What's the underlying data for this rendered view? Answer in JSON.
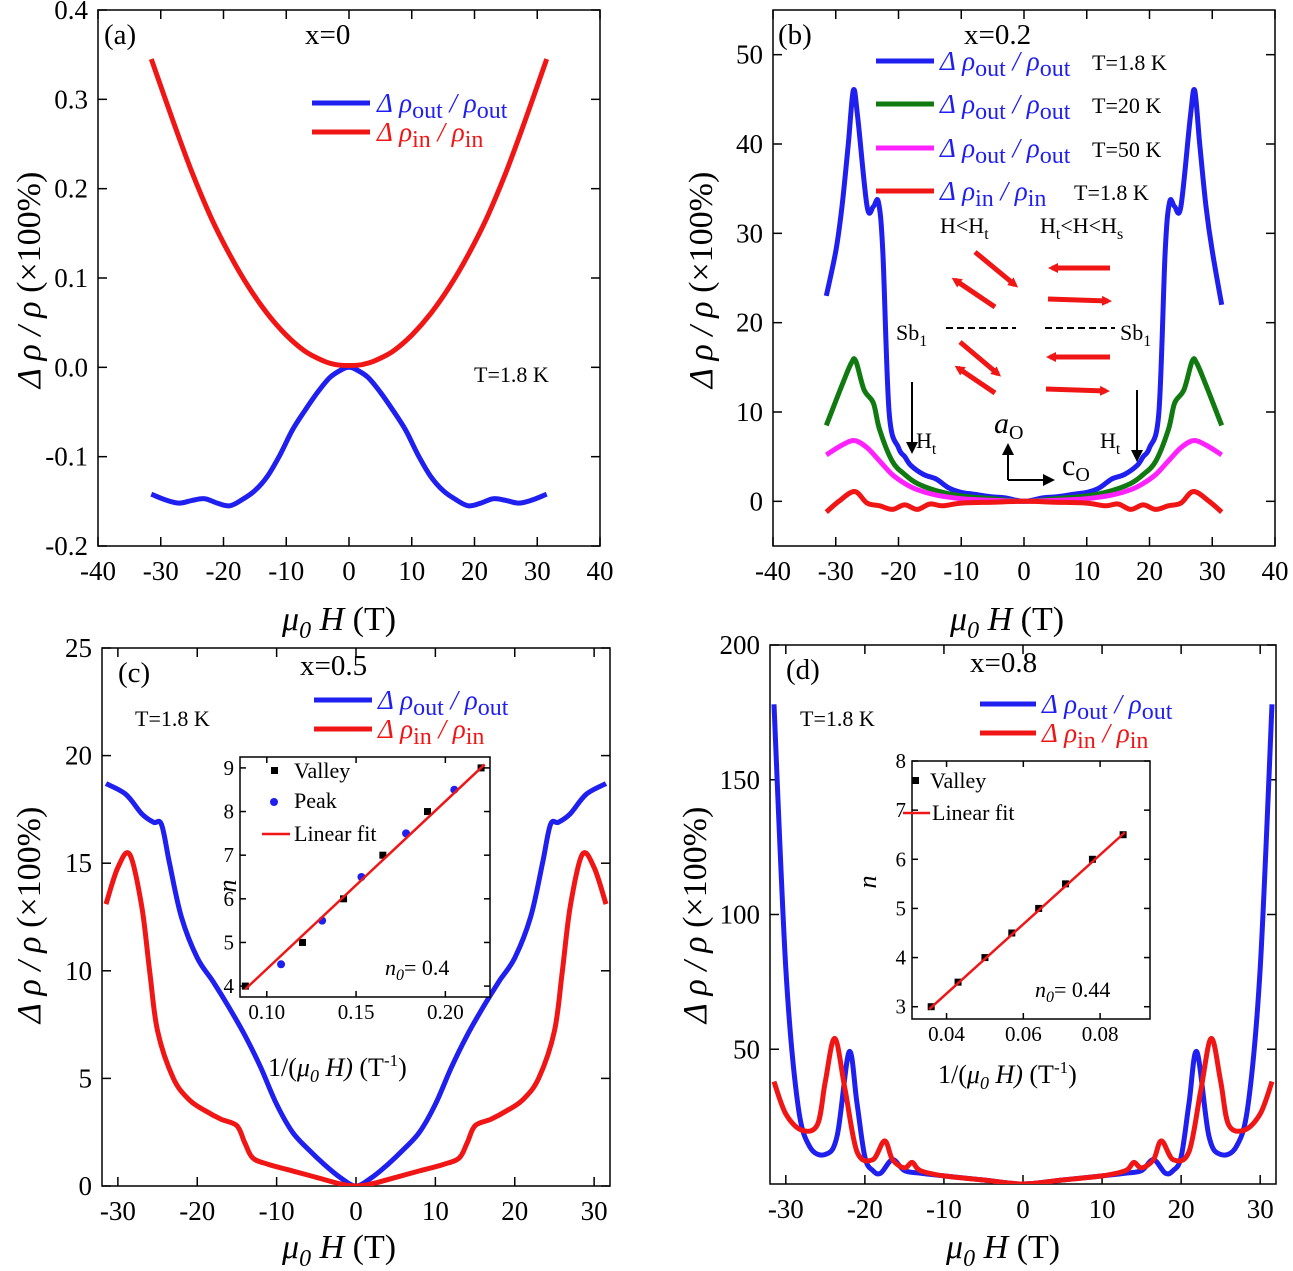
{
  "figure": {
    "panels": [
      {
        "id": "a",
        "label": "(a)",
        "title": "x=0",
        "temperature": "T=1.8 K",
        "xlabel": "(T)",
        "ylabel": "(×100%)"
      },
      {
        "id": "b",
        "label": "(b)",
        "title": "x=0.2",
        "xlabel": "(T)",
        "ylabel": "(×100%)",
        "annotations": {
          "h_low": "H<H",
          "h_low_sub": "t",
          "h_mid": "H",
          "h_mid_sub1": "t",
          "h_mid_mid": "<H<H",
          "h_mid_sub2": "s",
          "sb": "Sb",
          "sb_sub": "1",
          "ht": "H",
          "ht_sub": "t",
          "ao": "a",
          "ao_sub": "O",
          "co": "c",
          "co_sub": "O"
        }
      },
      {
        "id": "c",
        "label": "(c)",
        "title": "x=0.5",
        "temperature": "T=1.8 K",
        "xlabel": "(T)",
        "ylabel": "(×100%)",
        "inset": {
          "ylabel": "n",
          "xlabel": "(T",
          "xlabel_sup": "-1",
          "xlabel_pre": "1/(",
          "n0": "= 0.4",
          "n0_label": "n"
        }
      },
      {
        "id": "d",
        "label": "(d)",
        "title": "x=0.8",
        "temperature": "T=1.8 K",
        "xlabel": "(T)",
        "ylabel": "(×100%)",
        "inset": {
          "ylabel": "n",
          "xlabel": "(T",
          "xlabel_sup": "-1",
          "xlabel_pre": "1/(",
          "n0": "= 0.44",
          "n0_label": "n"
        }
      }
    ],
    "legend": {
      "out_delta": "Δ ρ",
      "out_sub": "out",
      "out_slash": " / ρ",
      "in_delta": "Δ ρ",
      "in_sub": "in",
      "in_slash": " / ρ",
      "t18": "T=1.8 K",
      "t20": "T=20 K",
      "t50": "T=50 K",
      "valley": "Valley",
      "peak": "Peak",
      "linear_fit": "Linear fit"
    },
    "colors": {
      "blue": "#1f1ff0",
      "red": "#f01616",
      "green": "#107a10",
      "magenta": "#ff22ff"
    }
  },
  "chart_data": [
    {
      "panel": "a",
      "type": "line",
      "title": "x=0",
      "xlabel": "μ0 H (T)",
      "ylabel": "Δρ/ρ (×100%)",
      "xlim": [
        -40,
        40
      ],
      "ylim": [
        -0.2,
        0.4
      ],
      "xticks": [
        -40,
        -30,
        -20,
        -10,
        0,
        10,
        20,
        30,
        40
      ],
      "yticks": [
        -0.2,
        -0.1,
        0.0,
        0.1,
        0.2,
        0.3,
        0.4
      ],
      "ytick_labels": [
        "-0.2",
        "-0.1",
        "0.0",
        "0.1",
        "0.2",
        "0.3",
        "0.4"
      ],
      "series": [
        {
          "name": "Δρout/ρout",
          "color": "blue",
          "x": [
            -31.5,
            -29,
            -27,
            -25,
            -23,
            -21,
            -19,
            -17,
            -15,
            -13,
            -11,
            -9,
            -7,
            -5,
            -3,
            -1,
            0,
            1,
            3,
            5,
            7,
            9,
            11,
            13,
            15,
            17,
            19,
            21,
            23,
            25,
            27,
            29,
            31.5
          ],
          "y": [
            -0.142,
            -0.149,
            -0.152,
            -0.149,
            -0.147,
            -0.152,
            -0.155,
            -0.148,
            -0.138,
            -0.122,
            -0.098,
            -0.07,
            -0.048,
            -0.028,
            -0.011,
            -0.002,
            0.0,
            -0.002,
            -0.011,
            -0.028,
            -0.048,
            -0.07,
            -0.098,
            -0.122,
            -0.138,
            -0.148,
            -0.155,
            -0.152,
            -0.147,
            -0.149,
            -0.152,
            -0.149,
            -0.142
          ]
        },
        {
          "name": "Δρin/ρin",
          "color": "red",
          "x": [
            -31.5,
            -28,
            -25,
            -22,
            -19,
            -16,
            -13,
            -10,
            -7,
            -4,
            -2,
            0,
            2,
            4,
            7,
            10,
            13,
            16,
            19,
            22,
            25,
            28,
            31.5
          ],
          "y": [
            0.345,
            0.275,
            0.218,
            0.168,
            0.126,
            0.09,
            0.06,
            0.036,
            0.018,
            0.007,
            0.003,
            0.002,
            0.003,
            0.007,
            0.018,
            0.036,
            0.06,
            0.09,
            0.126,
            0.168,
            0.218,
            0.275,
            0.345
          ]
        }
      ]
    },
    {
      "panel": "b",
      "type": "line",
      "title": "x=0.2",
      "xlabel": "μ0 H (T)",
      "ylabel": "Δρ/ρ (×100%)",
      "xlim": [
        -40,
        40
      ],
      "ylim": [
        -5,
        55
      ],
      "xticks": [
        -40,
        -30,
        -20,
        -10,
        0,
        10,
        20,
        30,
        40
      ],
      "yticks": [
        0,
        10,
        20,
        30,
        40,
        50
      ],
      "series": [
        {
          "name": "Δρout/ρout T=1.8 K",
          "color": "blue",
          "x": [
            -31.5,
            -30,
            -29,
            -28,
            -27.2,
            -26.5,
            -25,
            -24,
            -23.2,
            -22.5,
            -21.5,
            -20,
            -19,
            -18,
            -16,
            -14,
            -12,
            -10,
            -8,
            -5,
            -3,
            0,
            3,
            5,
            8,
            10,
            12,
            14,
            16,
            18,
            19,
            20,
            21.5,
            22.5,
            23.2,
            24,
            25,
            26.5,
            27.2,
            28,
            29,
            30,
            31.5
          ],
          "y": [
            23,
            28,
            33,
            40,
            46,
            43,
            33,
            33,
            33.5,
            28,
            10,
            6,
            5,
            4,
            3,
            2.5,
            1.5,
            1,
            0.8,
            0.5,
            0.4,
            0,
            0.4,
            0.5,
            0.8,
            1,
            1.5,
            2.5,
            3,
            4,
            5,
            6,
            10,
            28,
            33.5,
            33,
            33,
            43,
            46,
            40,
            33,
            28,
            22
          ]
        },
        {
          "name": "Δρout/ρout T=20 K",
          "color": "green",
          "x": [
            -31.5,
            -29,
            -27.5,
            -26.8,
            -25.5,
            -24,
            -23,
            -21,
            -19,
            -17,
            -14,
            -10,
            -5,
            0,
            5,
            10,
            14,
            17,
            19,
            21,
            23,
            24,
            25.5,
            26.8,
            27.5,
            29,
            31.5
          ],
          "y": [
            8.5,
            13,
            15.5,
            15.7,
            12.5,
            11,
            8,
            4.5,
            3,
            2,
            1.2,
            0.6,
            0.3,
            0,
            0.3,
            0.6,
            1.2,
            2,
            3,
            4.5,
            8,
            11,
            12.5,
            15.7,
            15.5,
            13,
            8.5
          ]
        },
        {
          "name": "Δρout/ρout T=50 K",
          "color": "magenta",
          "x": [
            -31.5,
            -29,
            -27,
            -25,
            -23,
            -21,
            -19,
            -17,
            -14,
            -10,
            -5,
            0,
            5,
            10,
            14,
            17,
            19,
            21,
            23,
            25,
            27,
            29,
            31.5
          ],
          "y": [
            5.2,
            6.3,
            6.8,
            6,
            4.5,
            3,
            2,
            1.3,
            0.7,
            0.3,
            0.1,
            0,
            0.1,
            0.3,
            0.7,
            1.3,
            2,
            3,
            4.5,
            6,
            6.8,
            6.3,
            5.2
          ]
        },
        {
          "name": "Δρin/ρin T=1.8 K",
          "color": "red",
          "x": [
            -31.5,
            -29.5,
            -27,
            -25,
            -23,
            -21,
            -19,
            -17,
            -15,
            -13,
            -10,
            -5,
            0,
            5,
            10,
            13,
            15,
            17,
            19,
            21,
            23,
            25,
            27,
            29.5,
            31.5
          ],
          "y": [
            -1.2,
            0,
            1.1,
            -0.2,
            -0.5,
            -0.9,
            -0.4,
            -0.9,
            -0.3,
            -0.5,
            -0.2,
            -0.1,
            0,
            -0.1,
            -0.2,
            -0.5,
            -0.3,
            -0.9,
            -0.4,
            -0.9,
            -0.5,
            -0.2,
            1.1,
            0,
            -1.2
          ]
        }
      ]
    },
    {
      "panel": "c",
      "type": "line",
      "title": "x=0.5",
      "xlabel": "μ0 H (T)",
      "ylabel": "Δρ/ρ (×100%)",
      "xlim": [
        -32,
        32
      ],
      "ylim": [
        0,
        25
      ],
      "xticks": [
        -30,
        -20,
        -10,
        0,
        10,
        20,
        30
      ],
      "yticks": [
        0,
        5,
        10,
        15,
        20,
        25
      ],
      "series": [
        {
          "name": "Δρout/ρout",
          "color": "blue",
          "x": [
            -31.5,
            -29,
            -27,
            -25.5,
            -24.5,
            -23.5,
            -22,
            -20,
            -18,
            -16,
            -14,
            -12,
            -10,
            -8,
            -6,
            -4,
            -2,
            0,
            2,
            4,
            6,
            8,
            10,
            12,
            14,
            16,
            18,
            20,
            22,
            23.5,
            24.5,
            25.5,
            27,
            29,
            31.5
          ],
          "y": [
            18.7,
            18.2,
            17.3,
            16.9,
            16.8,
            15,
            12.5,
            10.6,
            9.5,
            8.3,
            7,
            5.5,
            3.8,
            2.5,
            1.7,
            1,
            0.4,
            0,
            0.4,
            1,
            1.7,
            2.5,
            3.8,
            5.5,
            7,
            8.3,
            9.5,
            10.6,
            12.5,
            15,
            16.8,
            16.9,
            17.3,
            18.2,
            18.7
          ]
        },
        {
          "name": "Δρin/ρin",
          "color": "red",
          "x": [
            -31.5,
            -30,
            -28.5,
            -27,
            -26,
            -25,
            -23,
            -21,
            -19,
            -17,
            -15,
            -14,
            -13,
            -11,
            -8,
            -5,
            -2,
            0,
            2,
            5,
            8,
            11,
            13,
            14,
            15,
            17,
            19,
            21,
            23,
            25,
            26,
            27,
            28.5,
            30,
            31.5
          ],
          "y": [
            13.1,
            14.8,
            15.4,
            13,
            10,
            7.2,
            5,
            4,
            3.5,
            3.1,
            2.8,
            2,
            1.3,
            1,
            0.7,
            0.4,
            0.1,
            0,
            0.1,
            0.4,
            0.7,
            1,
            1.3,
            2,
            2.8,
            3.1,
            3.5,
            4,
            5,
            7.2,
            10,
            13,
            15.4,
            14.8,
            13.1
          ]
        }
      ]
    },
    {
      "panel": "c-inset",
      "type": "scatter",
      "xlabel": "1/(μ0 H) (T^-1)",
      "ylabel": "n",
      "xlim": [
        0.085,
        0.225
      ],
      "ylim": [
        3.75,
        9.25
      ],
      "xticks": [
        0.1,
        0.15,
        0.2
      ],
      "yticks": [
        4,
        5,
        6,
        7,
        8,
        9
      ],
      "series": [
        {
          "name": "Valley",
          "color": "black",
          "marker": "square",
          "x": [
            0.088,
            0.12,
            0.143,
            0.165,
            0.19,
            0.22
          ],
          "y": [
            4,
            5,
            6,
            7,
            8,
            9
          ]
        },
        {
          "name": "Peak",
          "color": "blue",
          "marker": "circle",
          "x": [
            0.108,
            0.131,
            0.153,
            0.178,
            0.205
          ],
          "y": [
            4.5,
            5.5,
            6.5,
            7.5,
            8.5
          ]
        },
        {
          "name": "Linear fit",
          "color": "red",
          "marker": "line",
          "x": [
            0.088,
            0.222
          ],
          "y": [
            3.93,
            9.08
          ]
        }
      ],
      "annotation": "n0 = 0.4"
    },
    {
      "panel": "d",
      "type": "line",
      "title": "x=0.8",
      "xlabel": "μ0 H (T)",
      "ylabel": "Δρ/ρ (×100%)",
      "xlim": [
        -32,
        32
      ],
      "ylim": [
        0,
        200
      ],
      "xticks": [
        -30,
        -20,
        -10,
        0,
        10,
        20,
        30
      ],
      "yticks": [
        50,
        100,
        150,
        200
      ],
      "series": [
        {
          "name": "Δρout/ρout",
          "color": "blue",
          "x": [
            -31.5,
            -30,
            -28.5,
            -27,
            -25,
            -23.5,
            -22,
            -21,
            -20,
            -19,
            -18,
            -16.5,
            -15,
            -13,
            -10,
            -5,
            0,
            5,
            10,
            13,
            15,
            16.5,
            18,
            19,
            20,
            21,
            22,
            23.5,
            25,
            27,
            28.5,
            30,
            31.5
          ],
          "y": [
            178,
            80,
            30,
            14,
            11,
            18,
            49,
            30,
            10,
            5,
            4,
            9,
            5,
            4,
            3,
            1.5,
            0,
            1.5,
            3,
            4,
            5,
            9,
            4,
            5,
            10,
            30,
            49,
            18,
            11,
            14,
            30,
            80,
            178
          ]
        },
        {
          "name": "Δρin/ρin",
          "color": "red",
          "x": [
            -31.5,
            -30,
            -28,
            -26,
            -25,
            -23.8,
            -22.5,
            -21,
            -19,
            -17.5,
            -16.5,
            -15,
            -14,
            -13,
            -10,
            -5,
            0,
            5,
            10,
            13,
            14,
            15,
            16.5,
            17.5,
            19,
            21,
            22.5,
            23.8,
            25,
            26,
            28,
            30,
            31.5
          ],
          "y": [
            38,
            26,
            20,
            22,
            38,
            54,
            35,
            12,
            9,
            16,
            9,
            6,
            8,
            5,
            3,
            1.5,
            0,
            1.5,
            3,
            5,
            8,
            6,
            9,
            16,
            9,
            12,
            35,
            54,
            38,
            22,
            20,
            26,
            38
          ]
        }
      ]
    },
    {
      "panel": "d-inset",
      "type": "scatter",
      "xlabel": "1/(μ0 H) (T^-1)",
      "ylabel": "n",
      "xlim": [
        0.031,
        0.093
      ],
      "ylim": [
        2.75,
        8
      ],
      "xticks": [
        0.04,
        0.06,
        0.08
      ],
      "yticks": [
        3,
        4,
        5,
        6,
        7,
        8
      ],
      "series": [
        {
          "name": "Valley",
          "color": "black",
          "marker": "square",
          "x": [
            0.036,
            0.043,
            0.05,
            0.057,
            0.064,
            0.071,
            0.078,
            0.086
          ],
          "y": [
            3,
            3.5,
            4,
            4.5,
            5,
            5.5,
            6,
            6.5
          ]
        },
        {
          "name": "Linear fit",
          "color": "red",
          "marker": "line",
          "x": [
            0.0355,
            0.0865
          ],
          "y": [
            2.95,
            6.55
          ]
        }
      ],
      "annotation": "n0 = 0.44"
    }
  ]
}
